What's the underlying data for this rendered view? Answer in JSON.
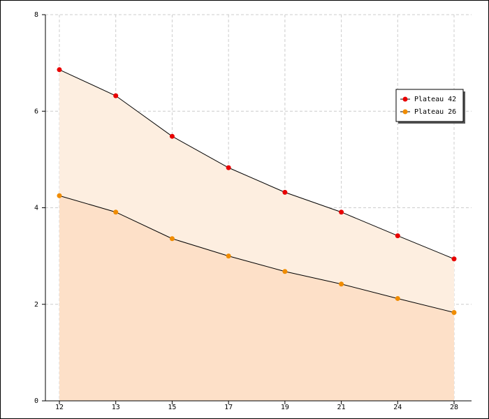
{
  "chart_data": {
    "type": "area",
    "categories": [
      "12",
      "13",
      "15",
      "17",
      "19",
      "21",
      "24",
      "28"
    ],
    "series": [
      {
        "name": "Plateau 42",
        "color": "#e80000",
        "fill": "#fdeee0",
        "values": [
          6.86,
          6.32,
          5.48,
          4.83,
          4.32,
          3.91,
          3.42,
          2.94
        ]
      },
      {
        "name": "Plateau 26",
        "color": "#f08c00",
        "fill": "#fde0c8",
        "values": [
          4.25,
          3.91,
          3.36,
          3.0,
          2.68,
          2.42,
          2.12,
          1.83
        ]
      }
    ],
    "ylim": [
      0,
      8
    ],
    "yticks": [
      0,
      2,
      4,
      6,
      8
    ],
    "grid": true,
    "legend": "upper right"
  }
}
